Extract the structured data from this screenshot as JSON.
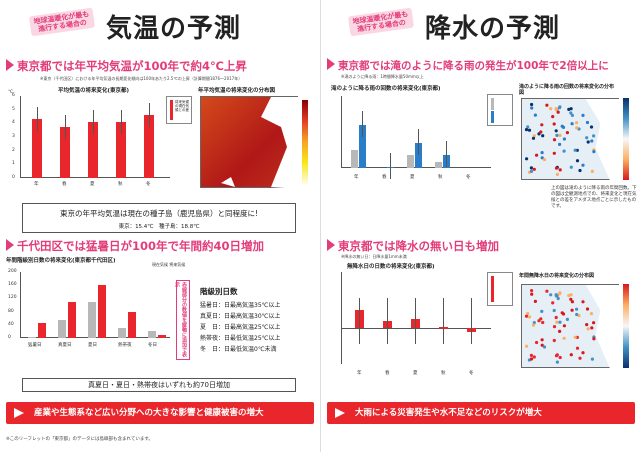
{
  "left": {
    "badge": "地球温暖化が最も進行する場合の",
    "title": "気温の予測",
    "sec1": "東京都では年平均気温が100年で約4℃上昇",
    "sec1_note": "※東京（千代田区）における年平均気温の長期変化傾向は100年あたり2.5℃の上昇（計算期間1876〜2017年）",
    "chart1_title": "平均気温の将来変化(東京都)",
    "chart1_unit": "℃",
    "map1_title": "年平均気温の将来変化の分布図",
    "chart1_data": {
      "type": "bar",
      "categories": [
        "年",
        "春",
        "夏",
        "秋",
        "冬"
      ],
      "values": [
        4.3,
        3.7,
        4.1,
        4.1,
        4.6
      ],
      "ylim": [
        0,
        6
      ],
      "yticks": [
        "0",
        "1",
        "2",
        "3",
        "4",
        "5",
        "6"
      ]
    },
    "chart1_legend": "将来気候の現在気候との差",
    "note_box": "東京の年平均気温は現在の種子島（鹿児島県）と同程度に!",
    "note_box_sub": "東京：15.4℃　種子島：18.8℃",
    "sec2": "千代田区では猛暑日が100年で年間約40日増加",
    "chart2_title": "年間階級別日数の将来変化(東京都千代田区)",
    "chart2_sub": "現在気候 将来気候",
    "chart2_data": {
      "type": "bar",
      "categories": [
        "猛暑日",
        "真夏日",
        "夏日",
        "熱帯夜",
        "冬日"
      ],
      "series": [
        {
          "name": "現在気候",
          "values": [
            4,
            55,
            110,
            30,
            22
          ]
        },
        {
          "name": "将来気候",
          "values": [
            45,
            110,
            160,
            80,
            8
          ]
        }
      ],
      "ylim": [
        0,
        200
      ],
      "yticks": [
        "0",
        "20",
        "40",
        "60",
        "80",
        "100",
        "120",
        "140",
        "160",
        "180",
        "200"
      ]
    },
    "vert_note": "赤線部分の数値を縦軸に追加で表示",
    "levels_title": "階級別日数",
    "levels": [
      "猛暑日：日最高気温35℃以上",
      "真夏日：日最高気温30℃以上",
      "夏　日：日最高気温25℃以上",
      "熱帯夜：日最低気温25℃以上",
      "冬　日：日最低気温0℃未満"
    ],
    "summary": "真夏日・夏日・熱帯夜はいずれも約70日増加",
    "band": "産業や生態系など広い分野への大きな影響と健康被害の増大",
    "footer": "※このリーフレットの「東京都」のデータには島嶼部も含まれています。"
  },
  "right": {
    "badge": "地球温暖化が最も進行する場合の",
    "title": "降水の予測",
    "sec1": "東京都では滝のように降る雨の発生が100年で2倍以上に",
    "sec1_note": "※滝のように降る雨：1時間降水量50mm以上",
    "chart1_title": "滝のように降る雨の回数の将来変化(東京都)",
    "map1_title": "滝のように降る雨の回数の将来変化の分布図",
    "chart1_data": {
      "type": "bar",
      "categories": [
        "年",
        "春",
        "夏",
        "秋",
        "冬"
      ],
      "series": [
        {
          "name": "現在気候",
          "values": [
            0.25,
            0.0,
            0.18,
            0.08,
            0.0
          ]
        },
        {
          "name": "将来気候",
          "values": [
            0.6,
            0.02,
            0.35,
            0.18,
            0.0
          ]
        }
      ],
      "ylim": [
        0,
        1.0
      ]
    },
    "side_note": "上の図は滝のように降る雨の年間回数。下の図は全観測地点での、将来変化と現在気候との差をアメダス地点ごとに示したものです。",
    "sec2": "東京都では降水の無い日も増加",
    "sec2_note": "※降水の無い日：日降水量1mm未満",
    "chart2_title": "無降水日の日数の将来変化(東京都)",
    "map2_title": "年間無降水日の将来変化の分布図",
    "chart2_data": {
      "type": "bar",
      "categories": [
        "年",
        "春",
        "夏",
        "秋",
        "冬"
      ],
      "values": [
        8,
        3,
        4,
        0.5,
        -2
      ],
      "ylim": [
        -15,
        25
      ]
    },
    "band": "大雨による災害発生や水不足などのリスクが増大"
  }
}
